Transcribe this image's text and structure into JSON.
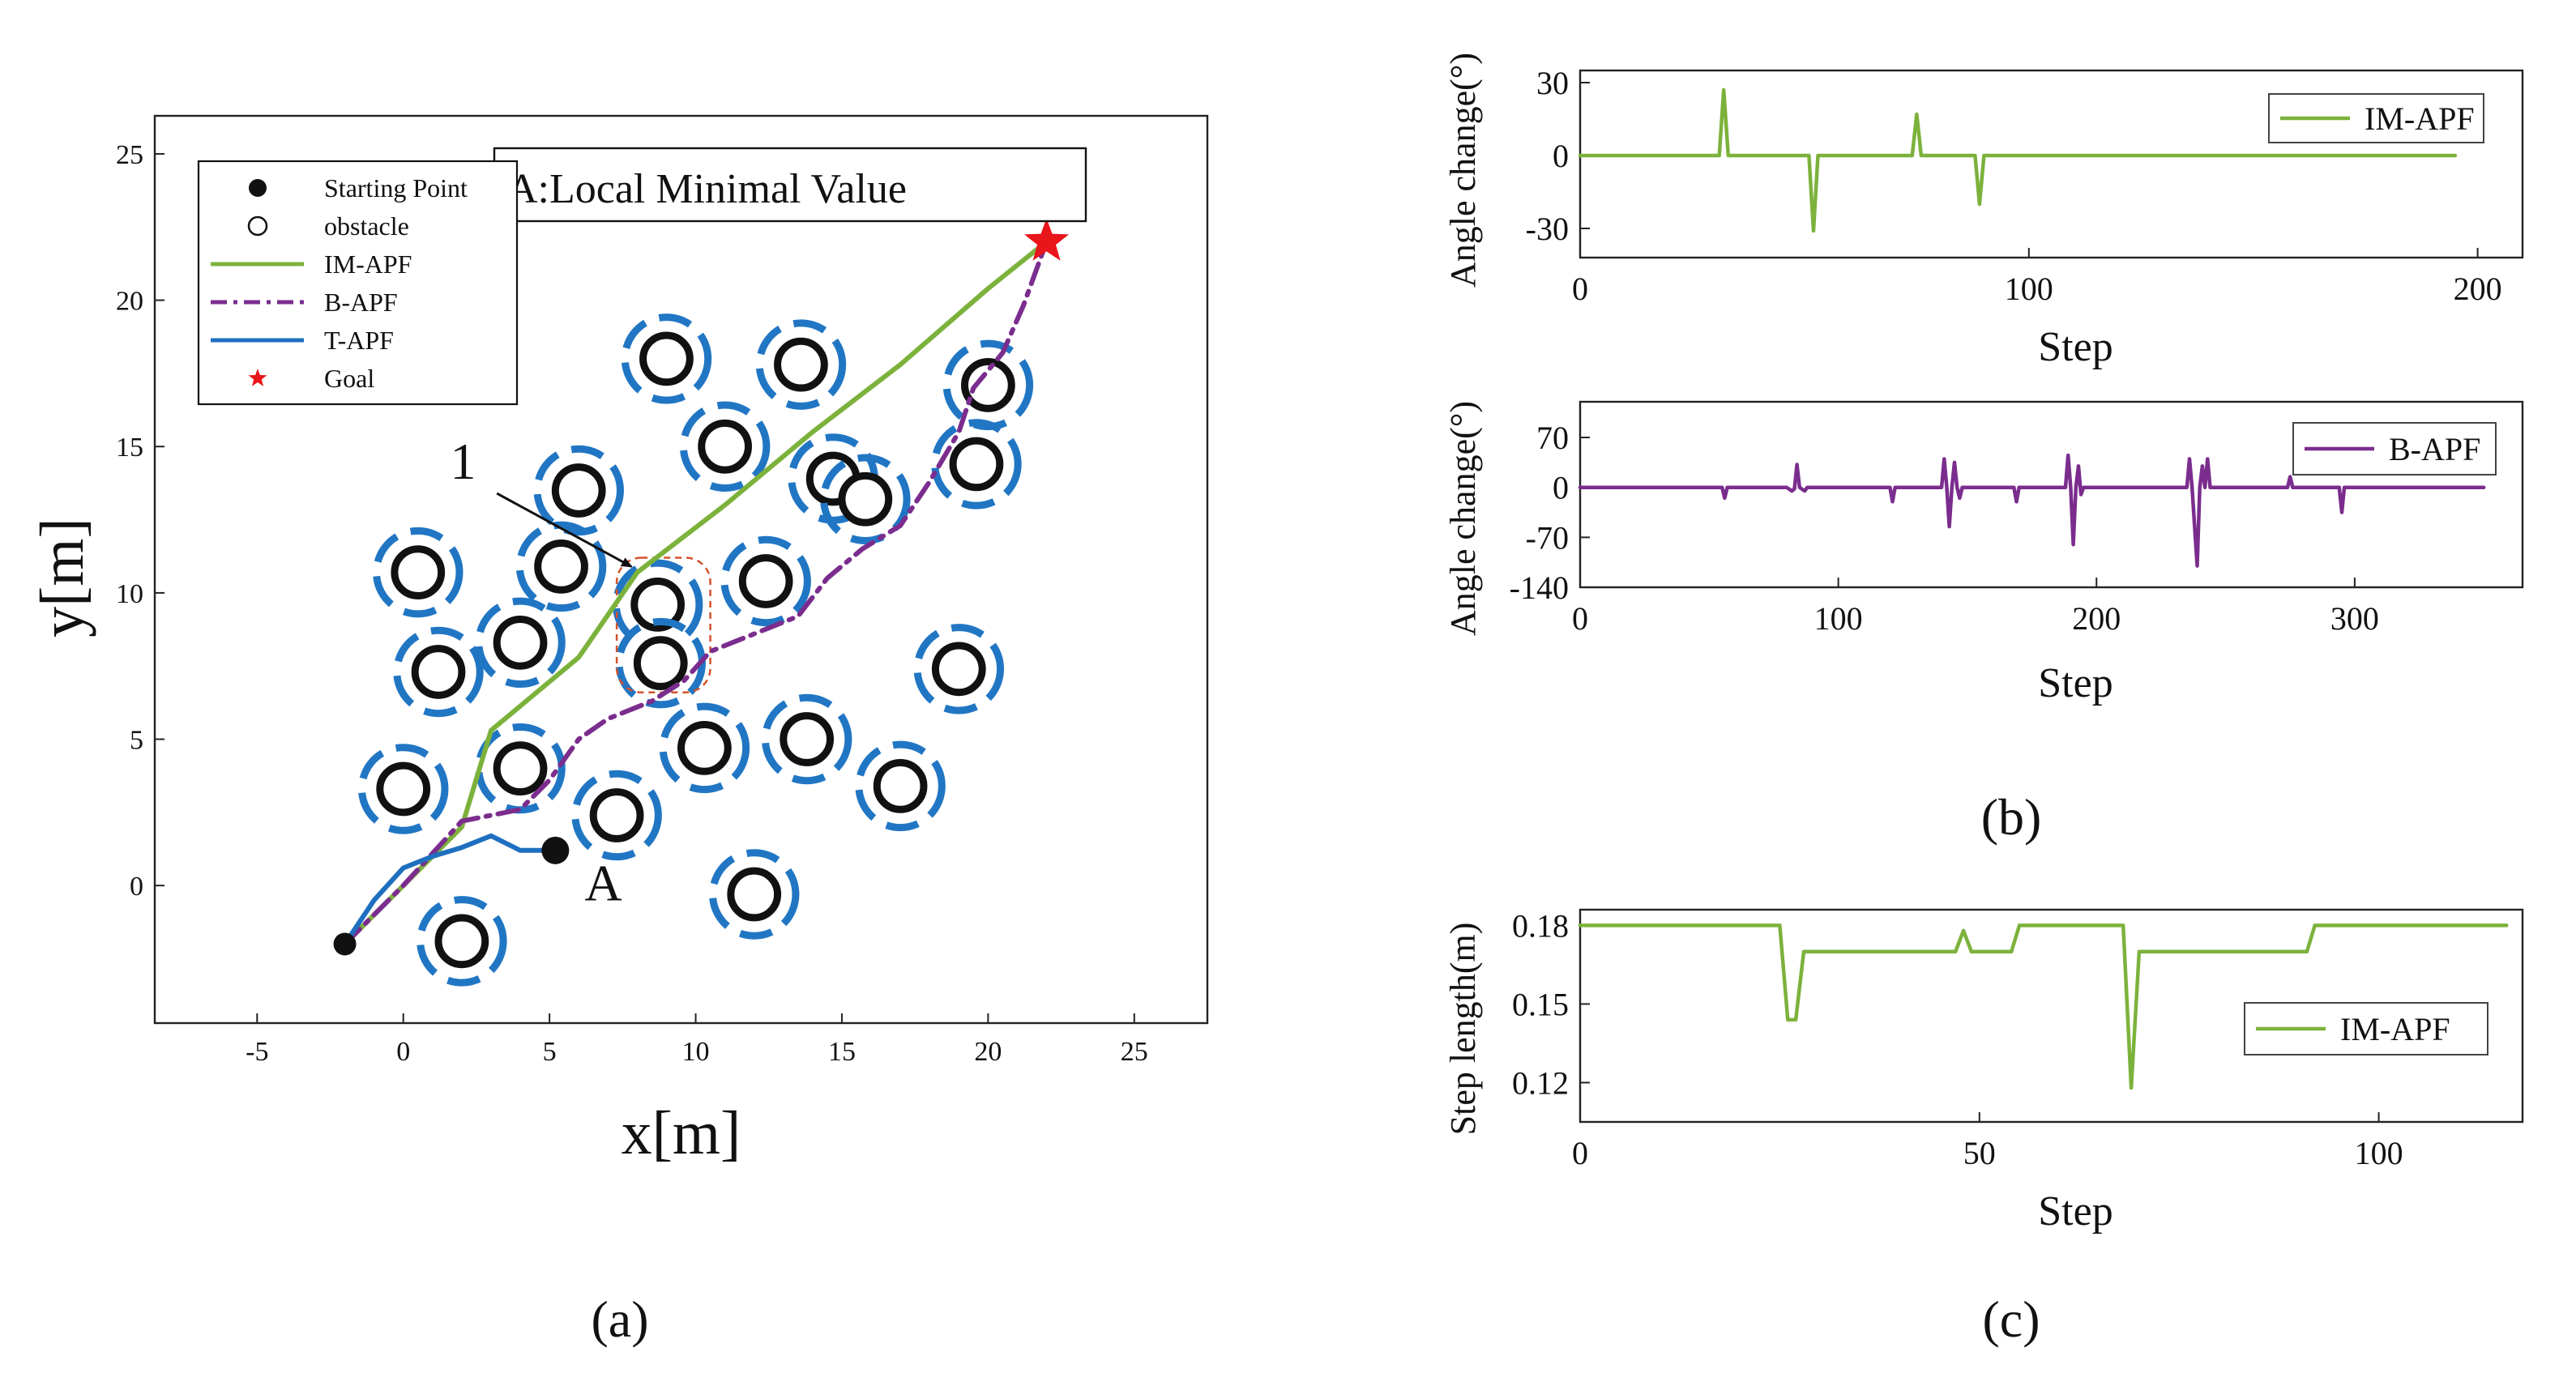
{
  "colors": {
    "im_apf": "#7cb23c",
    "b_apf": "#7b2d8e",
    "t_apf": "#1f6fbf",
    "goal": "#e8151b",
    "obstacle_ring": "#2176c4",
    "local_min_box": "#d2522c",
    "axis": "#222222"
  },
  "chart_data": [
    {
      "id": "a",
      "type": "line",
      "panel_label": "(a)",
      "xlabel": "x[m]",
      "ylabel": "y[m]",
      "xlim": [
        -8.5,
        27.5
      ],
      "ylim": [
        -4.7,
        26.3
      ],
      "xticks": [
        -5,
        0,
        5,
        10,
        15,
        20,
        25
      ],
      "yticks": [
        0,
        5,
        10,
        15,
        20,
        25
      ],
      "legend": {
        "placement": "top-left",
        "entries": [
          {
            "label": "Starting Point",
            "kind": "dot"
          },
          {
            "label": "obstacle",
            "kind": "ring"
          },
          {
            "label": "IM-APF",
            "kind": "solid",
            "series": "im_apf"
          },
          {
            "label": "B-APF",
            "kind": "dashdot",
            "series": "b_apf"
          },
          {
            "label": "T-APF",
            "kind": "solid",
            "series": "t_apf"
          },
          {
            "label": "Goal",
            "kind": "star"
          }
        ]
      },
      "annotation_box": "A:Local Minimal Value",
      "annotation_A": {
        "text": "A",
        "x": 6.2,
        "y": -0.5
      },
      "annotation_1": {
        "text": "1",
        "x": 1.6,
        "y": 13.9,
        "arrow_from": [
          3.2,
          13.4
        ],
        "arrow_to": [
          7.8,
          10.9
        ]
      },
      "local_minimum_region": {
        "x_range": [
          7.3,
          10.5
        ],
        "y_range": [
          6.6,
          11.2
        ]
      },
      "start": [
        -2,
        -2
      ],
      "goal": [
        22,
        22
      ],
      "t_apf_end": [
        5.2,
        1.2
      ],
      "obstacles": [
        [
          9,
          18
        ],
        [
          13.6,
          17.8
        ],
        [
          11,
          15
        ],
        [
          6,
          13.5
        ],
        [
          14.7,
          13.9
        ],
        [
          15.8,
          13.2
        ],
        [
          20,
          17.1
        ],
        [
          19.6,
          14.4
        ],
        [
          0.5,
          10.7
        ],
        [
          5.4,
          10.9
        ],
        [
          8.7,
          9.6
        ],
        [
          12.4,
          10.4
        ],
        [
          1.2,
          7.3
        ],
        [
          4,
          8.3
        ],
        [
          8.8,
          7.6
        ],
        [
          19,
          7.4
        ],
        [
          0,
          3.3
        ],
        [
          4,
          4
        ],
        [
          10.3,
          4.7
        ],
        [
          13.8,
          5
        ],
        [
          17,
          3.4
        ],
        [
          7.3,
          2.4
        ],
        [
          12,
          -0.3
        ],
        [
          2,
          -1.9
        ]
      ],
      "series": [
        {
          "name": "IM-APF",
          "style": "solid",
          "points": [
            [
              -2,
              -2
            ],
            [
              0,
              0
            ],
            [
              2,
              2
            ],
            [
              3,
              5.3
            ],
            [
              6,
              7.8
            ],
            [
              8,
              10.7
            ],
            [
              11,
              13
            ],
            [
              14,
              15.5
            ],
            [
              17,
              17.8
            ],
            [
              20,
              20.4
            ],
            [
              22,
              22
            ]
          ]
        },
        {
          "name": "B-APF",
          "style": "dashdot",
          "points": [
            [
              -2,
              -2
            ],
            [
              0,
              0
            ],
            [
              2,
              2.2
            ],
            [
              4,
              2.6
            ],
            [
              5,
              3.6
            ],
            [
              6,
              5
            ],
            [
              7,
              5.7
            ],
            [
              8.5,
              6.3
            ],
            [
              9.6,
              7
            ],
            [
              10.5,
              8
            ],
            [
              12,
              8.6
            ],
            [
              13.5,
              9.2
            ],
            [
              14.5,
              10.5
            ],
            [
              15.7,
              11.5
            ],
            [
              17,
              12.3
            ],
            [
              18,
              13.8
            ],
            [
              19,
              15.5
            ],
            [
              19.5,
              17
            ],
            [
              20.5,
              18.2
            ],
            [
              21.2,
              19.8
            ],
            [
              22,
              22
            ]
          ]
        },
        {
          "name": "T-APF",
          "style": "solid",
          "points": [
            [
              -2,
              -2
            ],
            [
              -1,
              -0.5
            ],
            [
              0,
              0.6
            ],
            [
              1,
              1
            ],
            [
              2,
              1.3
            ],
            [
              3,
              1.7
            ],
            [
              4,
              1.2
            ],
            [
              5.2,
              1.2
            ]
          ]
        }
      ]
    },
    {
      "id": "b1",
      "type": "line",
      "xlabel": "Step",
      "ylabel": "Angle change(°)",
      "xlim": [
        0,
        210
      ],
      "ylim": [
        -42,
        35
      ],
      "xticks": [
        0,
        100,
        200
      ],
      "yticks": [
        30,
        0,
        -30
      ],
      "legend": {
        "placement": "top-right",
        "entries": [
          "IM-APF"
        ]
      },
      "series": [
        {
          "name": "IM-APF",
          "points": [
            [
              0,
              0
            ],
            [
              31,
              0
            ],
            [
              32,
              27
            ],
            [
              33,
              0
            ],
            [
              51,
              0
            ],
            [
              52,
              -31
            ],
            [
              53,
              0
            ],
            [
              74,
              0
            ],
            [
              75,
              17
            ],
            [
              76,
              0
            ],
            [
              88,
              0
            ],
            [
              89,
              -20
            ],
            [
              90,
              0
            ],
            [
              195,
              0
            ]
          ]
        }
      ]
    },
    {
      "id": "b2",
      "type": "line",
      "panel_label": "(b)",
      "xlabel": "Step",
      "ylabel": "Angle change(°)",
      "xlim": [
        0,
        365
      ],
      "ylim": [
        -140,
        120
      ],
      "xticks": [
        0,
        100,
        200,
        300
      ],
      "yticks": [
        70,
        0,
        -70,
        -140
      ],
      "legend": {
        "placement": "top-right",
        "entries": [
          "B-APF"
        ]
      },
      "series": [
        {
          "name": "B-APF",
          "points": [
            [
              0,
              0
            ],
            [
              55,
              0
            ],
            [
              56,
              -15
            ],
            [
              57,
              0
            ],
            [
              80,
              0
            ],
            [
              82,
              -5
            ],
            [
              83,
              -2
            ],
            [
              84,
              32
            ],
            [
              85,
              0
            ],
            [
              87,
              -5
            ],
            [
              88,
              0
            ],
            [
              120,
              0
            ],
            [
              121,
              -20
            ],
            [
              122,
              0
            ],
            [
              140,
              0
            ],
            [
              141,
              40
            ],
            [
              142,
              0
            ],
            [
              143,
              -55
            ],
            [
              144,
              0
            ],
            [
              145,
              35
            ],
            [
              146,
              0
            ],
            [
              147,
              -15
            ],
            [
              148,
              0
            ],
            [
              168,
              0
            ],
            [
              169,
              -20
            ],
            [
              170,
              0
            ],
            [
              188,
              0
            ],
            [
              189,
              45
            ],
            [
              190,
              0
            ],
            [
              191,
              -80
            ],
            [
              192,
              0
            ],
            [
              193,
              30
            ],
            [
              194,
              -10
            ],
            [
              195,
              0
            ],
            [
              235,
              0
            ],
            [
              236,
              40
            ],
            [
              237,
              0
            ],
            [
              239,
              -110
            ],
            [
              240,
              0
            ],
            [
              241,
              30
            ],
            [
              242,
              0
            ],
            [
              243,
              40
            ],
            [
              244,
              0
            ],
            [
              274,
              0
            ],
            [
              275,
              15
            ],
            [
              276,
              0
            ],
            [
              294,
              0
            ],
            [
              295,
              -35
            ],
            [
              296,
              0
            ],
            [
              350,
              0
            ]
          ]
        }
      ]
    },
    {
      "id": "c",
      "type": "line",
      "panel_label": "(c)",
      "xlabel": "Step",
      "ylabel": "Step length(m)",
      "xlim": [
        0,
        118
      ],
      "ylim": [
        0.105,
        0.186
      ],
      "xticks": [
        0,
        50,
        100
      ],
      "yticks": [
        0.18,
        0.15,
        0.12
      ],
      "ytick_labels": [
        "0.18",
        "0.15",
        "0.12"
      ],
      "legend": {
        "placement": "right",
        "entries": [
          "IM-APF"
        ]
      },
      "series": [
        {
          "name": "IM-APF",
          "points": [
            [
              0,
              0.18
            ],
            [
              25,
              0.18
            ],
            [
              26,
              0.144
            ],
            [
              27,
              0.144
            ],
            [
              28,
              0.17
            ],
            [
              47,
              0.17
            ],
            [
              48,
              0.178
            ],
            [
              49,
              0.17
            ],
            [
              54,
              0.17
            ],
            [
              55,
              0.18
            ],
            [
              68,
              0.18
            ],
            [
              69,
              0.118
            ],
            [
              70,
              0.17
            ],
            [
              91,
              0.17
            ],
            [
              92,
              0.18
            ],
            [
              116,
              0.18
            ]
          ]
        }
      ]
    }
  ]
}
